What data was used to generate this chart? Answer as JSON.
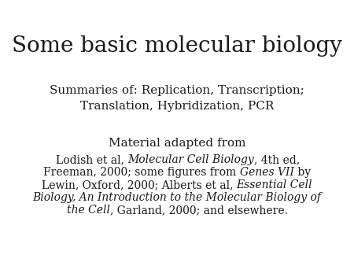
{
  "background_color": "#ffffff",
  "title": "Some basic molecular biology",
  "title_fontsize": 20,
  "subtitle_line1": "Summaries of: Replication, Transcription;",
  "subtitle_line2": "Translation, Hybridization, PCR",
  "subtitle_fontsize": 11,
  "material_label": "Material adapted from",
  "material_fontsize": 11,
  "ref_fontsize": 10,
  "text_color": "#1a1a1a",
  "font_family": "DejaVu Serif",
  "ref_lines": [
    [
      [
        "Lodish et al, ",
        "normal"
      ],
      [
        "Molecular Cell Biology",
        "italic"
      ],
      [
        ", 4th ed,",
        "normal"
      ]
    ],
    [
      [
        "Freeman, 2000; some figures from ",
        "normal"
      ],
      [
        "Genes VII",
        "italic"
      ],
      [
        " by",
        "normal"
      ]
    ],
    [
      [
        "Lewin, Oxford, 2000; Alberts et al, ",
        "normal"
      ],
      [
        "Essential Cell",
        "italic"
      ]
    ],
    [
      [
        "Biology, An Introduction to the Molecular Biology of",
        "italic"
      ]
    ],
    [
      [
        "the Cell",
        "italic"
      ],
      [
        ", Garland, 2000; and elsewhere.",
        "normal"
      ]
    ]
  ]
}
